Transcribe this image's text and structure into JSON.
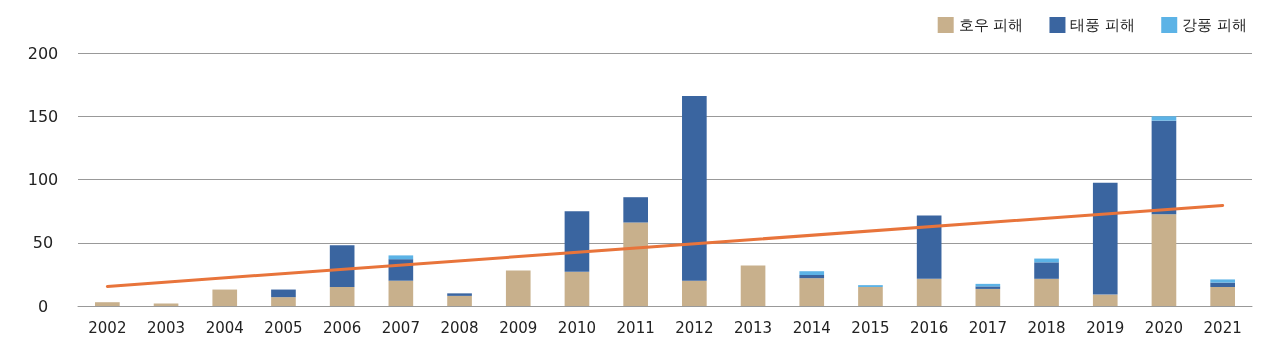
{
  "chart_data": {
    "type": "bar",
    "stacked": true,
    "categories": [
      "2002",
      "2003",
      "2004",
      "2005",
      "2006",
      "2007",
      "2008",
      "2009",
      "2010",
      "2011",
      "2012",
      "2013",
      "2014",
      "2015",
      "2016",
      "2017",
      "2018",
      "2019",
      "2020",
      "2021"
    ],
    "series": [
      {
        "name": "호우 피해",
        "color": "#c8b08c",
        "values": [
          3,
          2,
          13,
          7,
          15,
          20,
          8,
          28,
          27,
          66,
          20,
          32,
          22,
          15,
          21.5,
          13.5,
          21.5,
          9,
          72.5,
          15
        ]
      },
      {
        "name": "태풍 피해",
        "color": "#3a65a0",
        "values": [
          null,
          null,
          null,
          6,
          33,
          17,
          2,
          null,
          48,
          20,
          146,
          null,
          2.5,
          null,
          50,
          2,
          13,
          88.5,
          74,
          3.5
        ]
      },
      {
        "name": "강풍 피해",
        "color": "#5cb3e6",
        "values": [
          null,
          null,
          null,
          null,
          null,
          3,
          null,
          null,
          null,
          null,
          null,
          null,
          3,
          1.5,
          null,
          2,
          3,
          null,
          3.5,
          2.5
        ]
      },
      {
        "type": "line",
        "color": "#e8743b",
        "values": [
          15.5,
          null,
          null,
          null,
          null,
          null,
          null,
          null,
          null,
          null,
          null,
          null,
          null,
          null,
          null,
          null,
          null,
          null,
          null,
          79.5
        ]
      }
    ],
    "ylim": [
      0,
      200
    ],
    "yticks": [
      0,
      50,
      100,
      150,
      200
    ],
    "grid": "y",
    "legend": "top right",
    "marker": "none"
  }
}
